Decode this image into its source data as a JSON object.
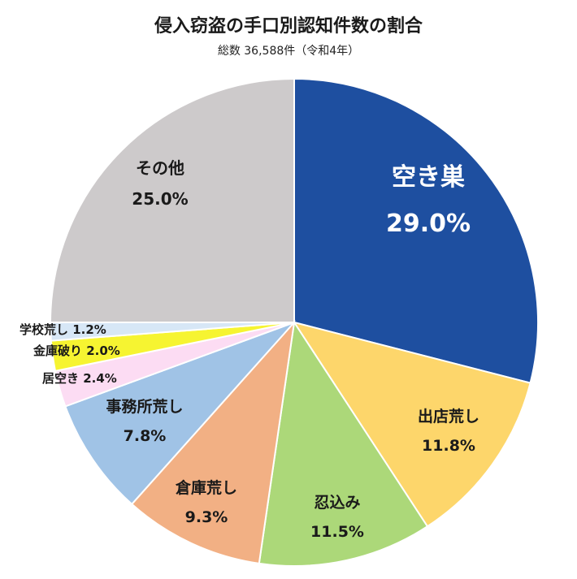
{
  "chart_data": {
    "type": "pie",
    "title": "侵入窃盗の手口別認知件数の割合",
    "subtitle": "総数 36,588件（令和4年）",
    "slices": [
      {
        "label": "空き巣",
        "value": 29.0,
        "value_label": "29.0%",
        "color": "#1e4fa0",
        "text_color": "#ffffff"
      },
      {
        "label": "出店荒し",
        "value": 11.8,
        "value_label": "11.8%",
        "color": "#fdd66b",
        "text_color": "#1a1a1a"
      },
      {
        "label": "忍込み",
        "value": 11.5,
        "value_label": "11.5%",
        "color": "#acd879",
        "text_color": "#1a1a1a"
      },
      {
        "label": "倉庫荒し",
        "value": 9.3,
        "value_label": "9.3%",
        "color": "#f2b084",
        "text_color": "#1a1a1a"
      },
      {
        "label": "事務所荒し",
        "value": 7.8,
        "value_label": "7.8%",
        "color": "#a0c3e6",
        "text_color": "#1a1a1a"
      },
      {
        "label": "居空き",
        "value": 2.4,
        "value_label": "2.4%",
        "color": "#fcdcf3",
        "text_color": "#1a1a1a"
      },
      {
        "label": "金庫破り",
        "value": 2.0,
        "value_label": "2.0%",
        "color": "#f6f431",
        "text_color": "#1a1a1a"
      },
      {
        "label": "学校荒し",
        "value": 1.2,
        "value_label": "1.2%",
        "color": "#d7e7f6",
        "text_color": "#1a1a1a"
      },
      {
        "label": "その他",
        "value": 25.0,
        "value_label": "25.0%",
        "color": "#cdcacb",
        "text_color": "#1a1a1a"
      }
    ]
  }
}
